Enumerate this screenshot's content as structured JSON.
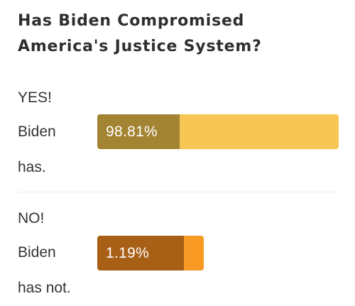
{
  "poll": {
    "question": "Has Biden Compromised America's Justice System?",
    "options": [
      {
        "line1": "YES!",
        "line2": "Biden",
        "line3": "has.",
        "percent_text": "98.81%",
        "percent": 98.81,
        "bar_color": "#f8c654",
        "chip_color": "#a38433"
      },
      {
        "line1": "NO!",
        "line2": "Biden",
        "line3": "has not.",
        "percent_text": "1.19%",
        "percent": 1.19,
        "bar_color": "#f89a24",
        "chip_color": "#a85f16"
      }
    ]
  }
}
